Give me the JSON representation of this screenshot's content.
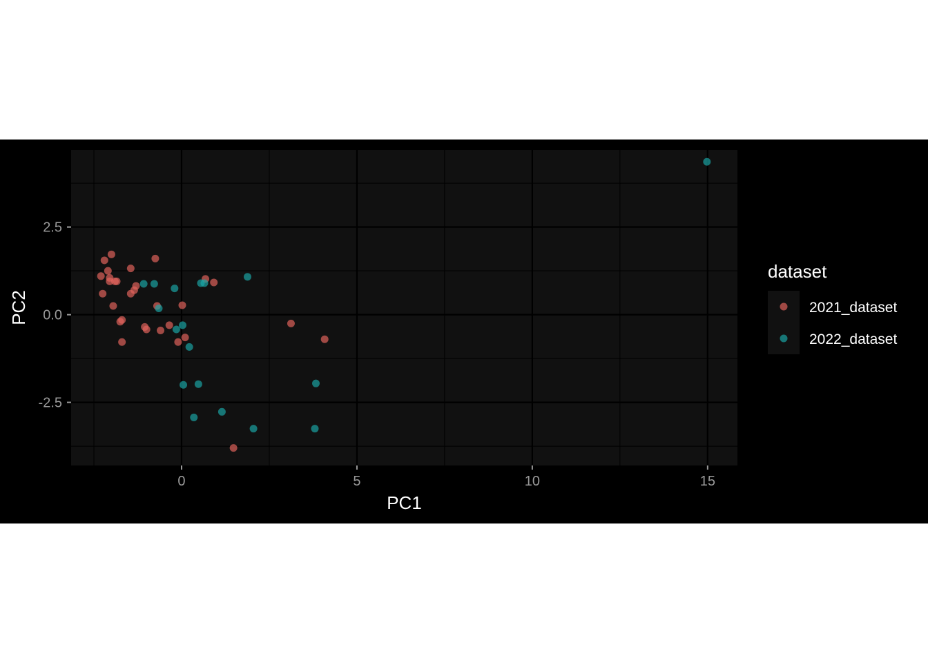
{
  "chart_data": {
    "type": "scatter",
    "title": "",
    "xlabel": "PC1",
    "ylabel": "PC2",
    "xlim": [
      -3.15,
      15.85
    ],
    "ylim": [
      -4.3,
      4.7
    ],
    "x_ticks": [
      0,
      5,
      10,
      15
    ],
    "x_tick_labels": [
      "0",
      "5",
      "10",
      "15"
    ],
    "y_ticks": [
      -2.5,
      0,
      2.5
    ],
    "y_tick_labels": [
      "-2.5",
      "0.0",
      "2.5"
    ],
    "grid": true,
    "legend": {
      "title": "dataset",
      "position": "right"
    },
    "colors": {
      "background": "#000000",
      "panel": "#111111",
      "grid": "#000000"
    },
    "series": [
      {
        "name": "2021_dataset",
        "color": "#E5645D",
        "points": [
          [
            -2.3,
            1.1
          ],
          [
            -2.2,
            1.55
          ],
          [
            -2.1,
            1.25
          ],
          [
            -2.05,
            1.05
          ],
          [
            -2.05,
            0.95
          ],
          [
            -2.0,
            1.72
          ],
          [
            -1.9,
            0.95
          ],
          [
            -1.85,
            0.95
          ],
          [
            -2.25,
            0.6
          ],
          [
            -1.95,
            0.25
          ],
          [
            -1.75,
            -0.2
          ],
          [
            -1.7,
            -0.15
          ],
          [
            -1.7,
            -0.78
          ],
          [
            -1.45,
            1.32
          ],
          [
            -1.45,
            0.6
          ],
          [
            -1.35,
            0.7
          ],
          [
            -1.3,
            0.82
          ],
          [
            -1.05,
            -0.35
          ],
          [
            -1.0,
            -0.42
          ],
          [
            -0.75,
            1.6
          ],
          [
            -0.7,
            0.25
          ],
          [
            -0.6,
            -0.45
          ],
          [
            -0.35,
            -0.3
          ],
          [
            -0.1,
            -0.78
          ],
          [
            0.02,
            0.27
          ],
          [
            0.1,
            -0.65
          ],
          [
            0.68,
            1.02
          ],
          [
            0.92,
            0.92
          ],
          [
            3.12,
            -0.25
          ],
          [
            4.08,
            -0.7
          ],
          [
            1.48,
            -3.8
          ]
        ]
      },
      {
        "name": "2022_dataset",
        "color": "#1AA6A6",
        "points": [
          [
            -1.08,
            0.88
          ],
          [
            -0.78,
            0.88
          ],
          [
            -0.65,
            0.18
          ],
          [
            -0.2,
            0.75
          ],
          [
            -0.15,
            -0.42
          ],
          [
            0.03,
            -0.3
          ],
          [
            0.22,
            -0.92
          ],
          [
            0.55,
            0.9
          ],
          [
            0.65,
            0.9
          ],
          [
            1.88,
            1.08
          ],
          [
            0.05,
            -2.0
          ],
          [
            0.48,
            -1.98
          ],
          [
            3.83,
            -1.96
          ],
          [
            0.35,
            -2.93
          ],
          [
            1.15,
            -2.77
          ],
          [
            2.05,
            -3.25
          ],
          [
            3.8,
            -3.25
          ],
          [
            14.98,
            4.36
          ]
        ]
      }
    ]
  }
}
